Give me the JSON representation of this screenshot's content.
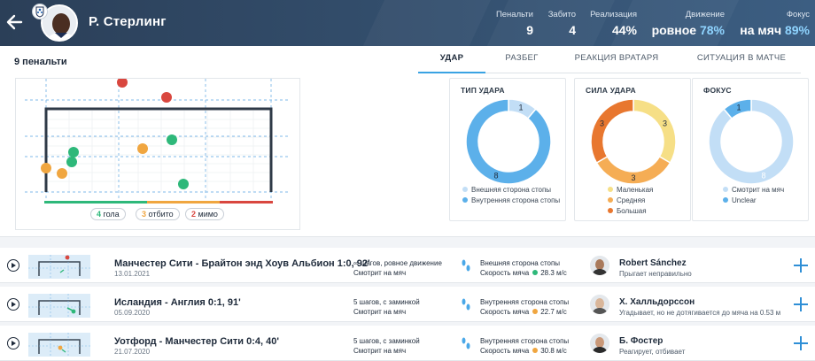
{
  "header": {
    "player_name": "Р. Стерлинг",
    "stats": [
      {
        "label": "Пенальти",
        "value": "9",
        "highlight": ""
      },
      {
        "label": "Забито",
        "value": "4",
        "highlight": ""
      },
      {
        "label": "Реализация",
        "value": "44%",
        "highlight": ""
      },
      {
        "label": "Движение",
        "value": "ровное",
        "highlight": "78%"
      },
      {
        "label": "Фокус",
        "value": "на мяч",
        "highlight": "89%"
      }
    ]
  },
  "panel": {
    "title": "9 пенальти",
    "tabs": [
      "УДАР",
      "РАЗБЕГ",
      "РЕАКЦИЯ ВРАТАРЯ",
      "СИТУАЦИЯ В МАТЧЕ"
    ],
    "active_tab": 0
  },
  "goal_map": {
    "legend": [
      {
        "count": "4",
        "label": "гола",
        "color": "#2eb87a"
      },
      {
        "count": "3",
        "label": "отбито",
        "color": "#f0a640"
      },
      {
        "count": "2",
        "label": "мимо",
        "color": "#d9473f"
      }
    ],
    "bar_colors": [
      "#2eb87a",
      "#f0a640",
      "#d9473f"
    ]
  },
  "colors": {
    "goal": "#2eb87a",
    "saved": "#f0a640",
    "miss": "#d9473f",
    "accent": "#3aa3e3",
    "header_bg": "#2f4560"
  },
  "chart_data": [
    {
      "type": "pie",
      "title": "ТИП УДАРА",
      "slices": [
        {
          "label": "Внешняя сторона стопы",
          "value": 1,
          "color": "#c2def6"
        },
        {
          "label": "Внутренняя сторона стопы",
          "value": 8,
          "color": "#5cb0ea"
        }
      ]
    },
    {
      "type": "pie",
      "title": "СИЛА УДАРА",
      "slices": [
        {
          "label": "Маленькая",
          "value": 3,
          "color": "#f6df86"
        },
        {
          "label": "Средняя",
          "value": 3,
          "color": "#f5ad55"
        },
        {
          "label": "Большая",
          "value": 3,
          "color": "#e8772f"
        }
      ]
    },
    {
      "type": "pie",
      "title": "ФОКУС",
      "slices": [
        {
          "label": "Смотрит на мяч",
          "value": 8,
          "color": "#c2def6"
        },
        {
          "label": "Unclear",
          "value": 1,
          "color": "#5cb0ea"
        }
      ]
    }
  ],
  "penalties": [
    {
      "match": "Манчестер Сити - Брайтон энд Хоув Альбион 1:0, 92'",
      "date": "13.01.2021",
      "run": "∞ шагов, ровное движение",
      "focus": "Смотрит на мяч",
      "foot": "Внешняя сторона стопы",
      "speed_label": "Скорость мяча",
      "speed": "28.3 м/с",
      "speed_color": "#2eb87a",
      "keeper": "Robert Sánchez",
      "keeper_action": "Прыгает неправильно",
      "result_color": "#d9473f"
    },
    {
      "match": "Исландия - Англия 0:1, 91'",
      "date": "05.09.2020",
      "run": "5 шагов, с заминкой",
      "focus": "Смотрит на мяч",
      "foot": "Внутренняя сторона стопы",
      "speed_label": "Скорость мяча",
      "speed": "22.7 м/с",
      "speed_color": "#f0a640",
      "keeper": "Х. Халльдорссон",
      "keeper_action": "Угадывает, но не дотягивается до мяча на 0.53 м",
      "result_color": "#2eb87a"
    },
    {
      "match": "Уотфорд - Манчестер Сити 0:4, 40'",
      "date": "21.07.2020",
      "run": "5 шагов, с заминкой",
      "focus": "Смотрит на мяч",
      "foot": "Внутренняя сторона стопы",
      "speed_label": "Скорость мяча",
      "speed": "30.8 м/с",
      "speed_color": "#f0a640",
      "keeper": "Б. Фостер",
      "keeper_action": "Реагирует, отбивает",
      "result_color": "#f0a640"
    }
  ]
}
